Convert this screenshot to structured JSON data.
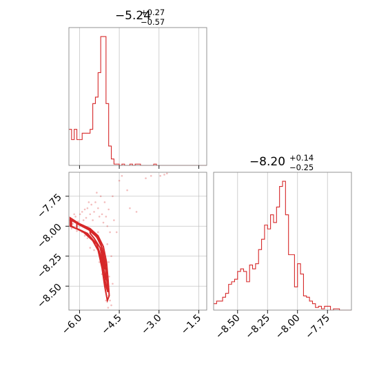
{
  "chart_data": [
    {
      "type": "histogram",
      "panel": "top-left",
      "title": {
        "main": "−5.24",
        "plus": "+0.27",
        "minus": "−0.57"
      },
      "xlim": [
        -6.4,
        -1.2
      ],
      "xticks": [
        -6.0,
        -4.5,
        -3.0,
        -1.5
      ],
      "show_tick_labels": false,
      "grid": true,
      "color": "#d62728",
      "bin_edges": [
        -6.4,
        -6.3,
        -6.2,
        -6.1,
        -6.0,
        -5.9,
        -5.8,
        -5.7,
        -5.6,
        -5.5,
        -5.4,
        -5.3,
        -5.2,
        -5.1,
        -5.0,
        -4.9,
        -4.8,
        -4.7,
        -4.6,
        -4.5,
        -4.4,
        -4.3,
        -4.2,
        -4.1,
        -4.0,
        -3.9,
        -3.8,
        -3.7,
        -3.6,
        -3.5,
        -3.4,
        -3.3,
        -3.2,
        -3.1,
        -3.0,
        -2.9,
        -2.8,
        -2.7,
        -2.6,
        -2.5,
        -2.4,
        -2.3,
        -2.2,
        -2.1,
        -2.0,
        -1.9,
        -1.8,
        -1.7,
        -1.6,
        -1.5,
        -1.4,
        -1.3,
        -1.2
      ],
      "values": [
        0.28,
        0.2,
        0.28,
        0.2,
        0.2,
        0.25,
        0.25,
        0.25,
        0.28,
        0.48,
        0.53,
        0.72,
        1.0,
        1.0,
        0.48,
        0.15,
        0.05,
        0.01,
        0.01,
        0.0,
        0.01,
        0.0,
        0.0,
        0.01,
        0.0,
        0.01,
        0.01,
        0.0,
        0.0,
        0.0,
        0.0,
        0.0,
        0.01,
        0.0,
        0.0,
        0.0,
        0.0,
        0.0,
        0.0,
        0.0,
        0.0,
        0.0,
        0.0,
        0.0,
        0.0,
        0.0,
        0.0,
        0.0,
        0.0,
        0.0,
        0.0,
        0.0
      ],
      "ymax": 1.07
    },
    {
      "type": "scatter",
      "panel": "bottom-left",
      "xlim": [
        -6.4,
        -1.2
      ],
      "ylim": [
        -8.7,
        -7.55
      ],
      "xticks": [
        -6.0,
        -4.5,
        -3.0,
        -1.5
      ],
      "xtick_labels": [
        "−6.0",
        "−4.5",
        "−3.0",
        "−1.5"
      ],
      "yticks": [
        -7.75,
        -8.0,
        -8.25,
        -8.5
      ],
      "ytick_labels": [
        "−7.75",
        "−8.00",
        "−8.25",
        "−8.50"
      ],
      "grid": true,
      "color": "#d62728",
      "points": [
        [
          -6.35,
          -7.95
        ],
        [
          -6.25,
          -7.98
        ],
        [
          -6.15,
          -7.92
        ],
        [
          -6.05,
          -7.96
        ],
        [
          -5.98,
          -7.9
        ],
        [
          -5.9,
          -7.88
        ],
        [
          -5.85,
          -7.95
        ],
        [
          -5.8,
          -7.86
        ],
        [
          -5.75,
          -7.93
        ],
        [
          -5.7,
          -7.85
        ],
        [
          -5.6,
          -7.9
        ],
        [
          -5.55,
          -7.82
        ],
        [
          -5.5,
          -7.95
        ],
        [
          -5.45,
          -7.88
        ],
        [
          -5.4,
          -7.8
        ],
        [
          -5.3,
          -7.85
        ],
        [
          -5.25,
          -7.92
        ],
        [
          -5.2,
          -7.75
        ],
        [
          -5.15,
          -7.9
        ],
        [
          -5.1,
          -7.97
        ],
        [
          -5.05,
          -7.8
        ],
        [
          -5.0,
          -7.92
        ],
        [
          -4.95,
          -8.0
        ],
        [
          -4.9,
          -7.86
        ],
        [
          -4.85,
          -8.05
        ],
        [
          -5.9,
          -8.05
        ],
        [
          -5.7,
          -8.1
        ],
        [
          -5.55,
          -8.05
        ],
        [
          -5.4,
          -8.12
        ],
        [
          -5.3,
          -8.05
        ],
        [
          -5.6,
          -8.18
        ],
        [
          -5.45,
          -8.2
        ],
        [
          -5.2,
          -8.15
        ],
        [
          -5.1,
          -8.28
        ],
        [
          -5.0,
          -8.35
        ],
        [
          -5.05,
          -8.45
        ],
        [
          -4.95,
          -8.5
        ],
        [
          -4.9,
          -8.58
        ],
        [
          -4.85,
          -8.62
        ],
        [
          -4.8,
          -8.66
        ],
        [
          -4.92,
          -8.68
        ],
        [
          -5.0,
          -8.62
        ],
        [
          -4.88,
          -8.42
        ],
        [
          -4.9,
          -8.3
        ],
        [
          -5.15,
          -8.4
        ],
        [
          -4.5,
          -7.62
        ],
        [
          -4.4,
          -7.58
        ],
        [
          -4.2,
          -7.7
        ],
        [
          -4.1,
          -7.85
        ],
        [
          -3.85,
          -7.88
        ],
        [
          -3.5,
          -7.6
        ],
        [
          -3.3,
          -7.58
        ],
        [
          -2.95,
          -7.58
        ],
        [
          -2.8,
          -7.57
        ],
        [
          -2.7,
          -7.56
        ],
        [
          -4.75,
          -7.75
        ],
        [
          -4.7,
          -7.95
        ],
        [
          -4.6,
          -8.05
        ],
        [
          -5.35,
          -7.72
        ],
        [
          -5.65,
          -7.8
        ],
        [
          -6.3,
          -8.02
        ],
        [
          -6.1,
          -8.04
        ],
        [
          -5.95,
          -7.99
        ],
        [
          -6.2,
          -7.9
        ],
        [
          -5.8,
          -8.08
        ],
        [
          -5.25,
          -8.3
        ],
        [
          -5.15,
          -8.22
        ],
        [
          -4.95,
          -8.15
        ],
        [
          -4.8,
          -8.25
        ],
        [
          -4.75,
          -8.48
        ]
      ],
      "contours": [
        [
          [
            -6.35,
            -7.93
          ],
          [
            -6.0,
            -7.98
          ],
          [
            -5.6,
            -8.02
          ],
          [
            -5.3,
            -8.08
          ],
          [
            -5.1,
            -8.17
          ],
          [
            -4.98,
            -8.3
          ],
          [
            -4.92,
            -8.45
          ],
          [
            -4.88,
            -8.58
          ],
          [
            -4.95,
            -8.62
          ],
          [
            -5.05,
            -8.5
          ],
          [
            -5.15,
            -8.35
          ],
          [
            -5.3,
            -8.2
          ],
          [
            -5.55,
            -8.1
          ],
          [
            -5.9,
            -8.04
          ],
          [
            -6.35,
            -8.0
          ]
        ],
        [
          [
            -6.3,
            -7.95
          ],
          [
            -6.0,
            -7.99
          ],
          [
            -5.65,
            -8.03
          ],
          [
            -5.35,
            -8.09
          ],
          [
            -5.15,
            -8.18
          ],
          [
            -5.03,
            -8.3
          ],
          [
            -4.97,
            -8.45
          ],
          [
            -4.93,
            -8.55
          ],
          [
            -5.0,
            -8.5
          ],
          [
            -5.1,
            -8.35
          ],
          [
            -5.25,
            -8.22
          ],
          [
            -5.5,
            -8.12
          ],
          [
            -5.85,
            -8.05
          ],
          [
            -6.3,
            -8.0
          ]
        ],
        [
          [
            -6.1,
            -7.97
          ],
          [
            -5.8,
            -8.0
          ],
          [
            -5.5,
            -8.05
          ],
          [
            -5.25,
            -8.12
          ],
          [
            -5.1,
            -8.22
          ],
          [
            -5.02,
            -8.35
          ],
          [
            -4.98,
            -8.45
          ],
          [
            -5.05,
            -8.4
          ],
          [
            -5.15,
            -8.28
          ],
          [
            -5.35,
            -8.15
          ],
          [
            -5.7,
            -8.06
          ],
          [
            -6.1,
            -8.02
          ]
        ],
        [
          [
            -5.6,
            -8.03
          ],
          [
            -5.35,
            -8.08
          ],
          [
            -5.18,
            -8.16
          ],
          [
            -5.08,
            -8.28
          ],
          [
            -5.04,
            -8.36
          ],
          [
            -5.1,
            -8.3
          ],
          [
            -5.22,
            -8.18
          ],
          [
            -5.45,
            -8.1
          ],
          [
            -5.6,
            -8.06
          ]
        ]
      ]
    },
    {
      "type": "histogram",
      "panel": "bottom-right",
      "title": {
        "main": "−8.20",
        "plus": "+0.14",
        "minus": "−0.25"
      },
      "xlim": [
        -8.7,
        -7.55
      ],
      "xticks": [
        -8.5,
        -8.25,
        -8.0,
        -7.75
      ],
      "xtick_labels": [
        "−8.50",
        "−8.25",
        "−8.00",
        "−7.75"
      ],
      "grid": true,
      "color": "#d62728",
      "bin_edges": [
        -8.7,
        -8.675,
        -8.65,
        -8.625,
        -8.6,
        -8.575,
        -8.55,
        -8.525,
        -8.5,
        -8.475,
        -8.45,
        -8.425,
        -8.4,
        -8.375,
        -8.35,
        -8.325,
        -8.3,
        -8.275,
        -8.25,
        -8.225,
        -8.2,
        -8.175,
        -8.15,
        -8.125,
        -8.1,
        -8.075,
        -8.05,
        -8.025,
        -8.0,
        -7.975,
        -7.95,
        -7.925,
        -7.9,
        -7.875,
        -7.85,
        -7.825,
        -7.8,
        -7.775,
        -7.75,
        -7.725,
        -7.7,
        -7.675,
        -7.65,
        -7.625,
        -7.6,
        -7.575,
        -7.55
      ],
      "values": [
        0.05,
        0.07,
        0.07,
        0.1,
        0.13,
        0.2,
        0.22,
        0.24,
        0.3,
        0.32,
        0.3,
        0.22,
        0.35,
        0.32,
        0.36,
        0.47,
        0.55,
        0.66,
        0.63,
        0.74,
        0.68,
        0.8,
        0.96,
        1.0,
        0.74,
        0.43,
        0.43,
        0.18,
        0.36,
        0.28,
        0.11,
        0.1,
        0.07,
        0.05,
        0.02,
        0.03,
        0.01,
        0.03,
        0.03,
        0.0,
        0.01,
        0.01,
        0.0,
        0.0,
        0.0,
        0.0
      ],
      "ymax": 1.07
    }
  ]
}
